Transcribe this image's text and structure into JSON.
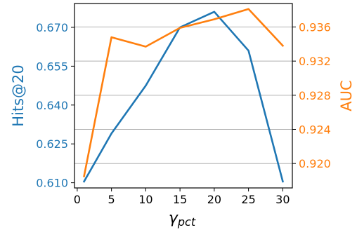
{
  "chart_data": {
    "type": "line",
    "x": [
      1,
      5,
      10,
      15,
      20,
      25,
      30
    ],
    "xlabel": "γ",
    "xlabel_sub": "pct",
    "xlim": [
      -0.4,
      31.4
    ],
    "xticks": [
      0,
      5,
      10,
      15,
      20,
      25,
      30
    ],
    "grid": "horizontal, right axis",
    "series": [
      {
        "name": "Hits@20",
        "axis": "left",
        "color": "#1f77b4",
        "values": [
          0.6105,
          0.629,
          0.6475,
          0.67,
          0.676,
          0.661,
          0.6105
        ]
      },
      {
        "name": "AUC",
        "axis": "right",
        "color": "#ff7f0e",
        "values": [
          0.9185,
          0.9348,
          0.9337,
          0.9359,
          0.9369,
          0.9381,
          0.9338
        ]
      }
    ],
    "left_axis": {
      "label": "Hits@20",
      "color": "#1f77b4",
      "ylim": [
        0.608,
        0.6792
      ],
      "ticks": [
        0.61,
        0.625,
        0.64,
        0.655,
        0.67
      ],
      "tick_labels": [
        "0.610",
        "0.625",
        "0.640",
        "0.655",
        "0.670"
      ]
    },
    "right_axis": {
      "label": "AUC",
      "color": "#ff7f0e",
      "ylim": [
        0.91714,
        0.93875
      ],
      "ticks": [
        0.92,
        0.924,
        0.928,
        0.932,
        0.936
      ],
      "tick_labels": [
        "0.920",
        "0.924",
        "0.928",
        "0.932",
        "0.936"
      ]
    }
  }
}
